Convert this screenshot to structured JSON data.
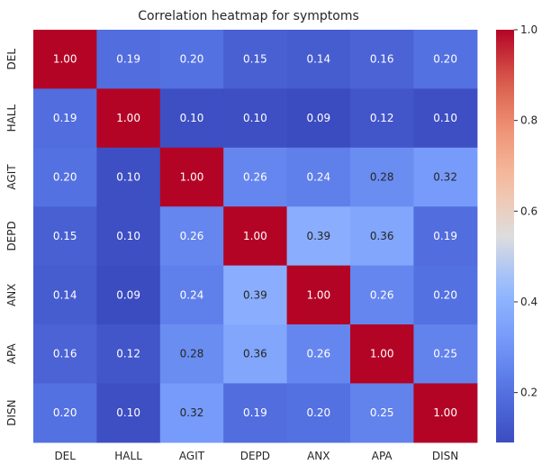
{
  "chart_data": {
    "type": "heatmap",
    "title": "Correlation heatmap for symptoms",
    "xlabel": "",
    "ylabel": "",
    "row_labels": [
      "DEL",
      "HALL",
      "AGIT",
      "DEPD",
      "ANX",
      "APA",
      "DISN"
    ],
    "col_labels": [
      "DEL",
      "HALL",
      "AGIT",
      "DEPD",
      "ANX",
      "APA",
      "DISN"
    ],
    "value_labels": [
      [
        "1.00",
        "0.19",
        "0.20",
        "0.15",
        "0.14",
        "0.16",
        "0.20"
      ],
      [
        "0.19",
        "1.00",
        "0.10",
        "0.10",
        "0.09",
        "0.12",
        "0.10"
      ],
      [
        "0.20",
        "0.10",
        "1.00",
        "0.26",
        "0.24",
        "0.28",
        "0.32"
      ],
      [
        "0.15",
        "0.10",
        "0.26",
        "1.00",
        "0.39",
        "0.36",
        "0.19"
      ],
      [
        "0.14",
        "0.09",
        "0.24",
        "0.39",
        "1.00",
        "0.26",
        "0.20"
      ],
      [
        "0.16",
        "0.12",
        "0.28",
        "0.36",
        "0.26",
        "1.00",
        "0.25"
      ],
      [
        "0.20",
        "0.10",
        "0.32",
        "0.19",
        "0.20",
        "0.25",
        "1.00"
      ]
    ],
    "values": [
      [
        1.0,
        0.19,
        0.2,
        0.15,
        0.14,
        0.16,
        0.2
      ],
      [
        0.19,
        1.0,
        0.1,
        0.1,
        0.09,
        0.12,
        0.1
      ],
      [
        0.2,
        0.1,
        1.0,
        0.26,
        0.24,
        0.28,
        0.32
      ],
      [
        0.15,
        0.1,
        0.26,
        1.0,
        0.39,
        0.36,
        0.19
      ],
      [
        0.14,
        0.09,
        0.24,
        0.39,
        1.0,
        0.26,
        0.2
      ],
      [
        0.16,
        0.12,
        0.28,
        0.36,
        0.26,
        1.0,
        0.25
      ],
      [
        0.2,
        0.1,
        0.32,
        0.19,
        0.2,
        0.25,
        1.0
      ]
    ],
    "colormap": "coolwarm",
    "colorbar": {
      "min": 0.09,
      "max": 1.0,
      "ticks": [
        0.2,
        0.4,
        0.6,
        0.8,
        1.0
      ],
      "tick_labels": [
        "0.2",
        "0.4",
        "0.6",
        "0.8",
        "1.0"
      ]
    },
    "grid": false
  }
}
